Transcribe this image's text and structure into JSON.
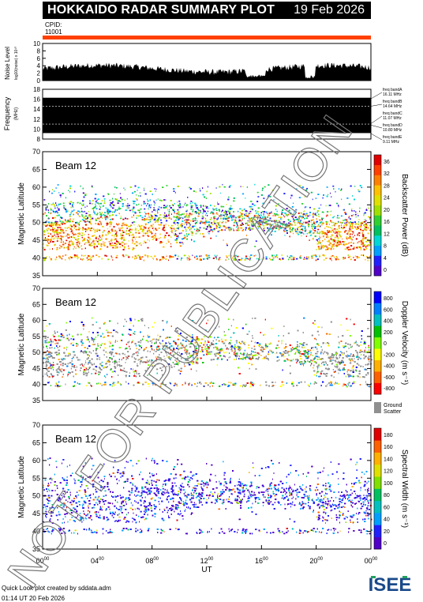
{
  "header": {
    "title": "HOKKAIDO RADAR SUMMARY PLOT",
    "date": "19 Feb 2026"
  },
  "cpid": {
    "label": "CPID:",
    "value": "11001"
  },
  "noise_panel": {
    "ylabel": "Noise Level",
    "sublabel": "log10(noise) x 10¹⁰",
    "ticks": [
      "10",
      "8",
      "6",
      "4",
      "2",
      "0"
    ]
  },
  "freq_panel": {
    "ylabel": "Frequency",
    "sublabel": "(MHz)",
    "ticks": [
      "18",
      "16",
      "14",
      "12",
      "10",
      "8"
    ],
    "bands": [
      {
        "name": "freq bandA",
        "value": "16.11 MHz"
      },
      {
        "name": "freq bandB",
        "value": "14.64 MHz"
      },
      {
        "name": "freq bandC",
        "value": "11.07 MHz"
      },
      {
        "name": "freq bandD",
        "value": "10.80 MHz"
      },
      {
        "name": "freq bandE",
        "value": "9.11 MHz"
      }
    ]
  },
  "panels": [
    {
      "beam": "Beam 12",
      "ylabel": "Magnetic Latitude",
      "cblabel": "Backscatter Power (dB)",
      "cbticks": [
        "36",
        "32",
        "28",
        "24",
        "20",
        "16",
        "12",
        "8",
        "4",
        "0"
      ]
    },
    {
      "beam": "Beam 12",
      "ylabel": "Magnetic Latitude",
      "cblabel": "Doppler Velocity (m s⁻¹)",
      "cbticks": [
        "800",
        "600",
        "400",
        "200",
        "0",
        "-200",
        "-400",
        "-600",
        "-800"
      ],
      "gs_label": "Ground Scatter"
    },
    {
      "beam": "Beam 12",
      "ylabel": "Magnetic Latitude",
      "cblabel": "Spectral Width (m s⁻¹)",
      "cbticks": [
        "180",
        "160",
        "140",
        "120",
        "100",
        "80",
        "60",
        "40",
        "20",
        "0"
      ]
    }
  ],
  "lat_ticks": [
    "70",
    "65",
    "60",
    "55",
    "50",
    "45",
    "40",
    "35"
  ],
  "xaxis": {
    "label": "UT",
    "ticks": [
      "00",
      "04",
      "08",
      "12",
      "16",
      "20",
      "00"
    ],
    "sup": "00"
  },
  "footer": {
    "line1": "Quick Look plot created by sddata.adm",
    "line2": "01:14 UT 20 Feb 2026"
  },
  "watermark": "NOT FOR PUBLICATION",
  "logo_text": "ISEE",
  "chart_data": {
    "type": "heatmap",
    "time_range_ut_hours": [
      0,
      24
    ],
    "lat_range": [
      35,
      70
    ],
    "noise_range": [
      0,
      10
    ],
    "freq_range_mhz": [
      8,
      18
    ],
    "power_range_db": [
      0,
      36
    ],
    "velocity_range": [
      -800,
      800
    ],
    "width_range": [
      0,
      180
    ],
    "colors": {
      "power": [
        "#5000c8",
        "#2020ff",
        "#00a0ff",
        "#00d8d8",
        "#00c060",
        "#30d030",
        "#a0e000",
        "#e0e000",
        "#ffc000",
        "#ff8000",
        "#ff4000",
        "#e00000"
      ],
      "velocity": [
        "#ff0000",
        "#ff6000",
        "#ffb000",
        "#ffff00",
        "#80ff00",
        "#00c000",
        "#00c0c0",
        "#0080ff",
        "#0000ff"
      ],
      "width": [
        "#5000c8",
        "#2020ff",
        "#00a0ff",
        "#00c0c0",
        "#00c060",
        "#80e000",
        "#e0e000",
        "#ffb000",
        "#ff6000",
        "#e00000"
      ],
      "ground": "#909090",
      "cpid_bar": "#ff4000"
    }
  }
}
